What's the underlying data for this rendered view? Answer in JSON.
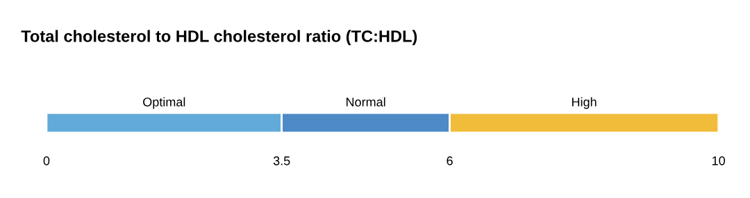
{
  "chart_data": {
    "type": "bar",
    "title": "Total cholesterol to HDL cholesterol ratio (TC:HDL)",
    "orientation": "horizontal",
    "stacked": true,
    "categories": [
      null
    ],
    "series": [
      {
        "name": "Optimal",
        "color": "#62aad9",
        "values": [
          3.5
        ]
      },
      {
        "name": "Normal",
        "color": "#4d8ac6",
        "values": [
          2.5
        ]
      },
      {
        "name": "High",
        "color": "#f2bc3b",
        "values": [
          4
        ]
      }
    ],
    "xlim": [
      0,
      10
    ],
    "xticks": [
      0,
      3.5,
      6,
      10
    ],
    "tick_labels": "x",
    "grid": false,
    "legend": false
  }
}
